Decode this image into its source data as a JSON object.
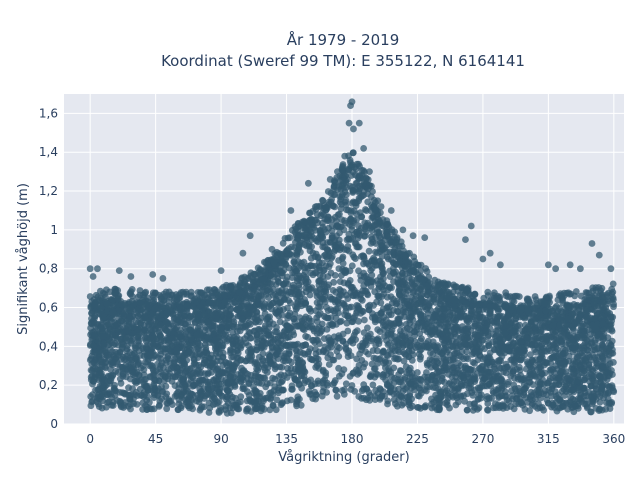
{
  "chart_data": {
    "type": "scatter",
    "title_lines": [
      "År 1979 - 2019",
      "Koordinat (Sweref 99 TM): E 355122, N 6164141"
    ],
    "xlabel": "Vågriktning (grader)",
    "ylabel": "Signifikant våghöjd (m)",
    "xlim": [
      -18,
      367
    ],
    "ylim": [
      0,
      1.7
    ],
    "x_ticks": [
      0,
      45,
      90,
      135,
      180,
      225,
      270,
      315,
      360
    ],
    "x_tick_labels": [
      "0",
      "45",
      "90",
      "135",
      "180",
      "225",
      "270",
      "315",
      "360"
    ],
    "y_ticks": [
      0,
      0.2,
      0.4,
      0.6,
      0.8,
      1.0,
      1.2,
      1.4,
      1.6
    ],
    "y_tick_labels": [
      "0",
      "0,2",
      "0,4",
      "0,6",
      "0,8",
      "1",
      "1,2",
      "1,4",
      "1,6"
    ],
    "grid": true,
    "marker_color": "#335a70",
    "plot_bg": "#e5e8f0",
    "envelope": {
      "x": [
        0,
        20,
        45,
        70,
        90,
        110,
        125,
        135,
        150,
        165,
        175,
        180,
        190,
        200,
        210,
        225,
        240,
        260,
        280,
        300,
        315,
        330,
        345,
        360
      ],
      "y_min": [
        0.08,
        0.08,
        0.07,
        0.07,
        0.05,
        0.06,
        0.07,
        0.08,
        0.1,
        0.12,
        0.13,
        0.13,
        0.12,
        0.1,
        0.09,
        0.08,
        0.07,
        0.07,
        0.07,
        0.07,
        0.06,
        0.06,
        0.06,
        0.08
      ],
      "y_max": [
        0.62,
        0.64,
        0.62,
        0.62,
        0.64,
        0.72,
        0.8,
        0.92,
        1.02,
        1.15,
        1.3,
        1.35,
        1.22,
        1.05,
        0.92,
        0.78,
        0.68,
        0.64,
        0.62,
        0.6,
        0.6,
        0.62,
        0.64,
        0.66
      ]
    },
    "outliers": [
      {
        "x": 0,
        "y": 0.8
      },
      {
        "x": 2,
        "y": 0.76
      },
      {
        "x": 5,
        "y": 0.8
      },
      {
        "x": 20,
        "y": 0.79
      },
      {
        "x": 28,
        "y": 0.76
      },
      {
        "x": 43,
        "y": 0.77
      },
      {
        "x": 50,
        "y": 0.75
      },
      {
        "x": 90,
        "y": 0.79
      },
      {
        "x": 105,
        "y": 0.88
      },
      {
        "x": 110,
        "y": 0.97
      },
      {
        "x": 125,
        "y": 0.9
      },
      {
        "x": 138,
        "y": 1.1
      },
      {
        "x": 150,
        "y": 1.24
      },
      {
        "x": 160,
        "y": 1.15
      },
      {
        "x": 165,
        "y": 1.26
      },
      {
        "x": 170,
        "y": 1.3
      },
      {
        "x": 175,
        "y": 1.38
      },
      {
        "x": 178,
        "y": 1.55
      },
      {
        "x": 179,
        "y": 1.64
      },
      {
        "x": 180,
        "y": 1.66
      },
      {
        "x": 181,
        "y": 1.52
      },
      {
        "x": 185,
        "y": 1.55
      },
      {
        "x": 188,
        "y": 1.42
      },
      {
        "x": 192,
        "y": 1.3
      },
      {
        "x": 200,
        "y": 1.12
      },
      {
        "x": 207,
        "y": 1.1
      },
      {
        "x": 215,
        "y": 1.0
      },
      {
        "x": 222,
        "y": 0.97
      },
      {
        "x": 230,
        "y": 0.96
      },
      {
        "x": 258,
        "y": 0.95
      },
      {
        "x": 262,
        "y": 1.02
      },
      {
        "x": 270,
        "y": 0.85
      },
      {
        "x": 275,
        "y": 0.88
      },
      {
        "x": 282,
        "y": 0.82
      },
      {
        "x": 315,
        "y": 0.82
      },
      {
        "x": 320,
        "y": 0.8
      },
      {
        "x": 330,
        "y": 0.82
      },
      {
        "x": 337,
        "y": 0.8
      },
      {
        "x": 345,
        "y": 0.93
      },
      {
        "x": 350,
        "y": 0.87
      },
      {
        "x": 358,
        "y": 0.8
      }
    ]
  }
}
